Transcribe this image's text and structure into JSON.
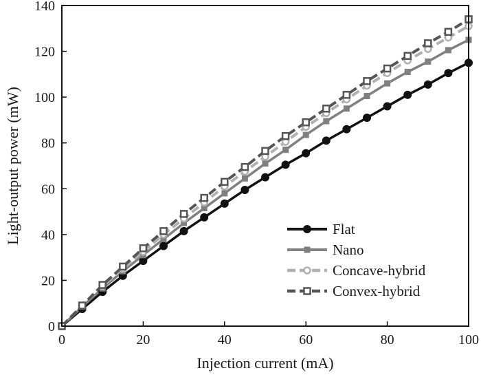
{
  "chart_data": {
    "type": "line",
    "xlabel": "Injection current (mA)",
    "ylabel": "Light-output power (mW)",
    "xlim": [
      0,
      100
    ],
    "ylim": [
      0,
      140
    ],
    "xticks": [
      0,
      20,
      40,
      60,
      80,
      100
    ],
    "yticks": [
      0,
      20,
      40,
      60,
      80,
      100,
      120,
      140
    ],
    "grid": false,
    "legend_position": "bottom-right",
    "x": [
      0,
      5,
      10,
      15,
      20,
      25,
      30,
      35,
      40,
      45,
      50,
      55,
      60,
      65,
      70,
      75,
      80,
      85,
      90,
      95,
      100
    ],
    "series": [
      {
        "name": "Flat",
        "color": "#111111",
        "line_style": "solid",
        "marker": "filled-circle",
        "values": [
          0,
          7.5,
          15,
          22,
          28.5,
          35,
          41.5,
          47.5,
          53.5,
          59.5,
          65,
          70.5,
          75.5,
          81,
          86,
          91,
          96,
          101,
          105.5,
          110.5,
          115
        ]
      },
      {
        "name": "Nano",
        "color": "#808080",
        "line_style": "solid",
        "marker": "filled-square",
        "values": [
          0,
          8.5,
          16.5,
          24,
          31,
          38,
          45,
          51.5,
          58,
          64.5,
          71,
          77,
          83.5,
          89.5,
          95,
          100.5,
          106,
          111,
          115.5,
          120.5,
          125
        ]
      },
      {
        "name": "Concave-hybrid",
        "color": "#b0b0b0",
        "line_style": "dashed",
        "marker": "open-circle",
        "values": [
          0,
          9,
          17.5,
          25,
          32.5,
          40,
          47,
          54,
          61,
          67.5,
          74,
          80.5,
          87,
          93,
          99,
          105,
          110.5,
          116,
          121,
          126,
          131
        ]
      },
      {
        "name": "Convex-hybrid",
        "color": "#555555",
        "line_style": "dashed",
        "marker": "open-square",
        "values": [
          0,
          9,
          18,
          26,
          34,
          41.5,
          49,
          56,
          63,
          69.5,
          76.5,
          83,
          89,
          95,
          101,
          107,
          112.5,
          118,
          123.5,
          128.5,
          134
        ]
      }
    ]
  }
}
